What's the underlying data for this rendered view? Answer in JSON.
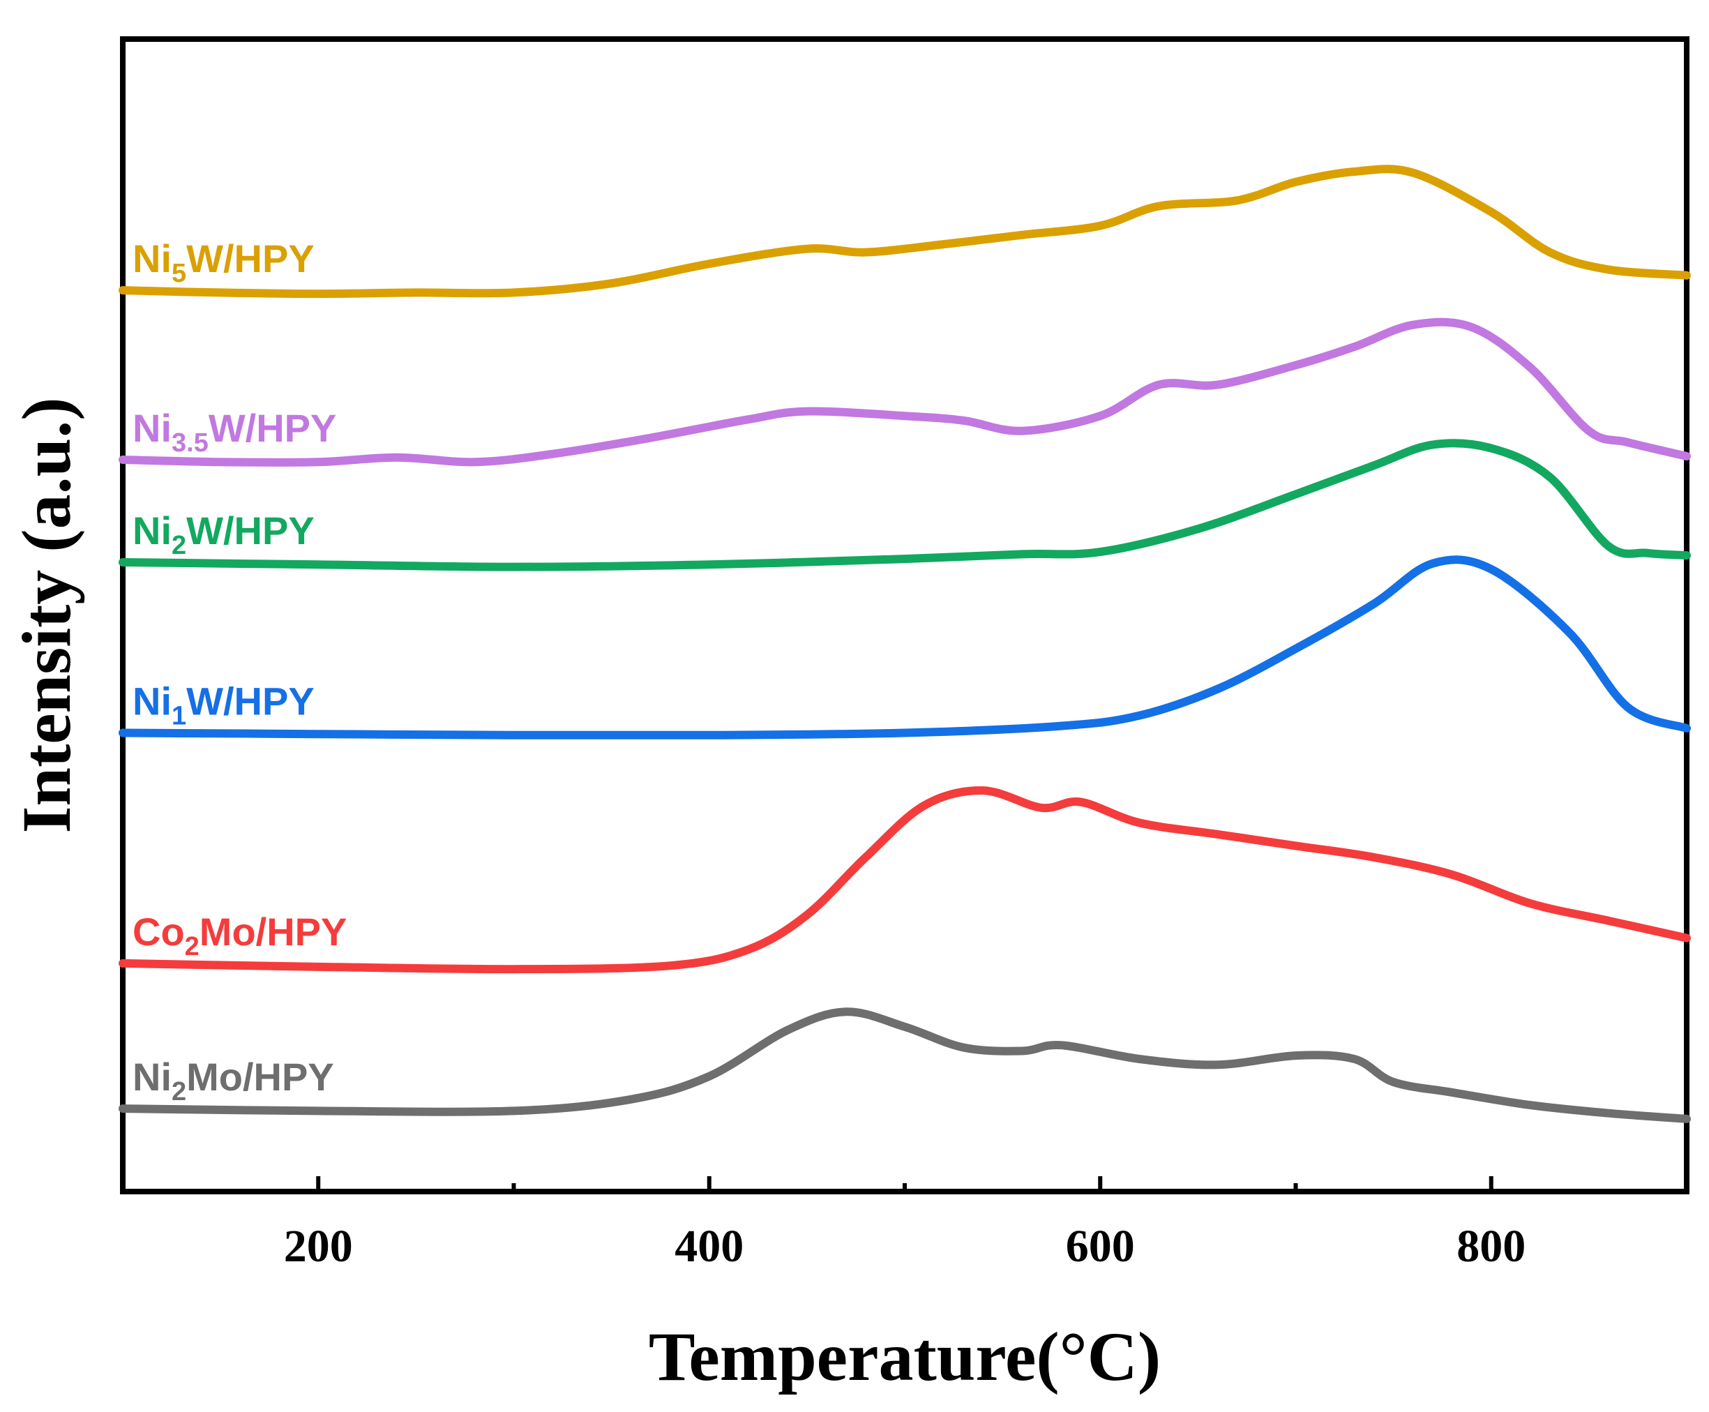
{
  "chart_data": {
    "type": "line",
    "title": "",
    "xlabel": "Temperature(°C)",
    "ylabel": "Intensity (a.u.)",
    "xlim": [
      100,
      900
    ],
    "ylim": [
      0,
      100
    ],
    "x_ticks": [
      200,
      400,
      600,
      800
    ],
    "x_minor_ticks": [
      300,
      500,
      700
    ],
    "y_ticks_shown": false,
    "legend_placement": "inline labels at left of each curve",
    "series": [
      {
        "name": "Ni5W/HPY",
        "label_main": "Ni",
        "label_sub": "5",
        "label_rest": "W/HPY",
        "color": "#DAA000",
        "points": [
          [
            100,
            78.2
          ],
          [
            150,
            78.0
          ],
          [
            200,
            77.9
          ],
          [
            250,
            78.0
          ],
          [
            300,
            78.0
          ],
          [
            350,
            78.8
          ],
          [
            400,
            80.5
          ],
          [
            450,
            81.8
          ],
          [
            480,
            81.5
          ],
          [
            520,
            82.2
          ],
          [
            560,
            83.0
          ],
          [
            600,
            83.8
          ],
          [
            630,
            85.5
          ],
          [
            670,
            86.0
          ],
          [
            700,
            87.6
          ],
          [
            730,
            88.5
          ],
          [
            760,
            88.4
          ],
          [
            800,
            85.0
          ],
          [
            830,
            81.5
          ],
          [
            860,
            80.0
          ],
          [
            900,
            79.5
          ]
        ]
      },
      {
        "name": "Ni3.5W/HPY",
        "label_main": "Ni",
        "label_sub": "3.5",
        "label_rest": "W/HPY",
        "color": "#C178E0",
        "points": [
          [
            100,
            63.5
          ],
          [
            150,
            63.3
          ],
          [
            200,
            63.3
          ],
          [
            240,
            63.7
          ],
          [
            280,
            63.3
          ],
          [
            320,
            64.0
          ],
          [
            370,
            65.4
          ],
          [
            420,
            67.0
          ],
          [
            450,
            67.7
          ],
          [
            500,
            67.3
          ],
          [
            530,
            66.9
          ],
          [
            560,
            66.0
          ],
          [
            600,
            67.3
          ],
          [
            630,
            70.0
          ],
          [
            660,
            70.0
          ],
          [
            700,
            71.7
          ],
          [
            730,
            73.3
          ],
          [
            760,
            75.2
          ],
          [
            790,
            75.0
          ],
          [
            820,
            71.5
          ],
          [
            850,
            66.0
          ],
          [
            870,
            65.0
          ],
          [
            900,
            63.8
          ]
        ]
      },
      {
        "name": "Ni2W/HPY",
        "label_main": "Ni",
        "label_sub": "2",
        "label_rest": "W/HPY",
        "color": "#12A860",
        "points": [
          [
            100,
            54.6
          ],
          [
            200,
            54.4
          ],
          [
            300,
            54.2
          ],
          [
            400,
            54.4
          ],
          [
            500,
            54.9
          ],
          [
            560,
            55.3
          ],
          [
            600,
            55.5
          ],
          [
            650,
            57.5
          ],
          [
            700,
            60.5
          ],
          [
            740,
            63.0
          ],
          [
            770,
            64.8
          ],
          [
            800,
            64.5
          ],
          [
            830,
            62.0
          ],
          [
            860,
            56.0
          ],
          [
            880,
            55.4
          ],
          [
            900,
            55.2
          ]
        ]
      },
      {
        "name": "Ni1W/HPY",
        "label_main": "Ni",
        "label_sub": "1",
        "label_rest": "W/HPY",
        "color": "#1470E6",
        "points": [
          [
            100,
            39.8
          ],
          [
            200,
            39.7
          ],
          [
            300,
            39.6
          ],
          [
            400,
            39.6
          ],
          [
            500,
            39.8
          ],
          [
            580,
            40.4
          ],
          [
            620,
            41.3
          ],
          [
            660,
            43.6
          ],
          [
            700,
            47.1
          ],
          [
            740,
            51.0
          ],
          [
            770,
            54.5
          ],
          [
            800,
            54.0
          ],
          [
            840,
            48.5
          ],
          [
            870,
            42.0
          ],
          [
            900,
            40.2
          ]
        ]
      },
      {
        "name": "Co2Mo/HPY",
        "label_main": "Co",
        "label_sub": "2",
        "label_rest": "Mo/HPY",
        "color": "#F43C3C",
        "points": [
          [
            100,
            19.8
          ],
          [
            200,
            19.5
          ],
          [
            300,
            19.3
          ],
          [
            380,
            19.6
          ],
          [
            420,
            21.0
          ],
          [
            450,
            24.0
          ],
          [
            480,
            29.0
          ],
          [
            510,
            33.5
          ],
          [
            540,
            34.8
          ],
          [
            570,
            33.3
          ],
          [
            590,
            33.8
          ],
          [
            620,
            32.0
          ],
          [
            660,
            31.0
          ],
          [
            700,
            30.0
          ],
          [
            740,
            29.0
          ],
          [
            780,
            27.5
          ],
          [
            820,
            25.0
          ],
          [
            860,
            23.5
          ],
          [
            900,
            22.0
          ]
        ]
      },
      {
        "name": "Ni2Mo/HPY",
        "label_main": "Ni",
        "label_sub": "2",
        "label_rest": "Mo/HPY",
        "color": "#6E6E6E",
        "points": [
          [
            100,
            7.2
          ],
          [
            200,
            7.0
          ],
          [
            300,
            7.0
          ],
          [
            360,
            8.0
          ],
          [
            400,
            10.0
          ],
          [
            440,
            14.0
          ],
          [
            470,
            15.6
          ],
          [
            500,
            14.3
          ],
          [
            530,
            12.5
          ],
          [
            560,
            12.2
          ],
          [
            580,
            12.7
          ],
          [
            620,
            11.5
          ],
          [
            660,
            11.0
          ],
          [
            700,
            11.8
          ],
          [
            730,
            11.5
          ],
          [
            750,
            9.5
          ],
          [
            780,
            8.6
          ],
          [
            820,
            7.5
          ],
          [
            860,
            6.8
          ],
          [
            900,
            6.3
          ]
        ]
      }
    ]
  }
}
